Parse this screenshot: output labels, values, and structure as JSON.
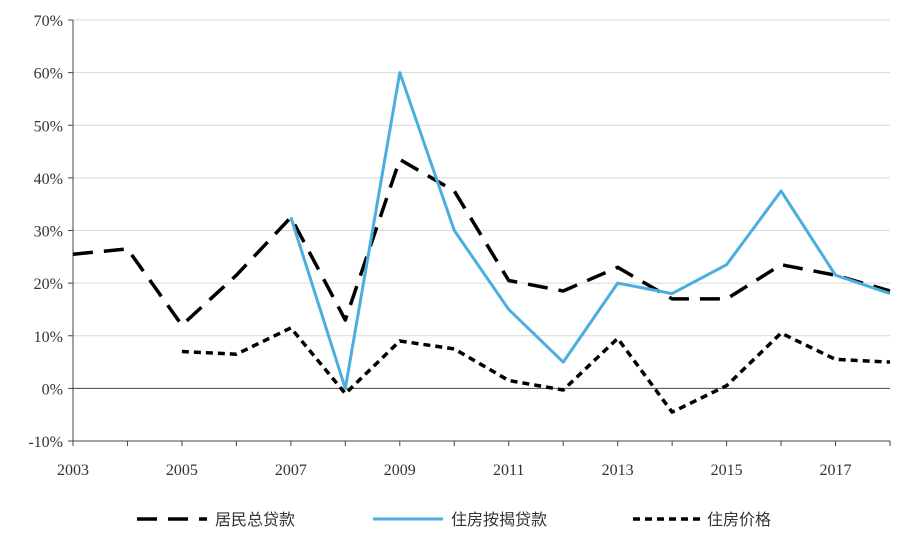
{
  "chart_data": {
    "type": "line",
    "x_start": 2003,
    "x_end": 2018,
    "x_tick_labels": [
      "2003",
      "2005",
      "2007",
      "2009",
      "2011",
      "2013",
      "2015",
      "2017"
    ],
    "x_tick_values": [
      2003,
      2005,
      2007,
      2009,
      2011,
      2013,
      2015,
      2017
    ],
    "ylim": [
      -10,
      70
    ],
    "y_tick_values": [
      70,
      60,
      50,
      40,
      30,
      20,
      10,
      0,
      -10
    ],
    "y_tick_labels": [
      "70%",
      "60%",
      "50%",
      "40%",
      "30%",
      "20%",
      "10%",
      "0%",
      "-10%"
    ],
    "grid": "horizontal",
    "legend_position": "bottom",
    "series": [
      {
        "name": "居民总贷款",
        "style": "long-dash",
        "color": "#000000",
        "x": [
          2003,
          2004,
          2005,
          2006,
          2007,
          2008,
          2009,
          2010,
          2011,
          2012,
          2013,
          2014,
          2015,
          2016,
          2017,
          2018
        ],
        "values": [
          25.5,
          26.5,
          12,
          21.5,
          32.5,
          13,
          43.5,
          37.5,
          20.5,
          18.5,
          23,
          17,
          17,
          23.5,
          21.5,
          18.5
        ]
      },
      {
        "name": "住房按揭贷款",
        "style": "solid",
        "color": "#4aaee0",
        "x": [
          2007,
          2008,
          2009,
          2010,
          2011,
          2012,
          2013,
          2014,
          2015,
          2016,
          2017,
          2018
        ],
        "values": [
          32.5,
          0,
          60,
          30,
          15,
          5,
          20,
          18,
          23.5,
          37.5,
          21.5,
          18
        ]
      },
      {
        "name": "住房价格",
        "style": "short-dash",
        "color": "#000000",
        "x": [
          2005,
          2006,
          2007,
          2008,
          2009,
          2010,
          2011,
          2012,
          2013,
          2014,
          2015,
          2016,
          2017,
          2018
        ],
        "values": [
          7,
          6.5,
          11.5,
          -1,
          9,
          7.5,
          1.5,
          -0.3,
          9.5,
          -4.5,
          0.5,
          10.5,
          5.5,
          5
        ]
      }
    ]
  }
}
